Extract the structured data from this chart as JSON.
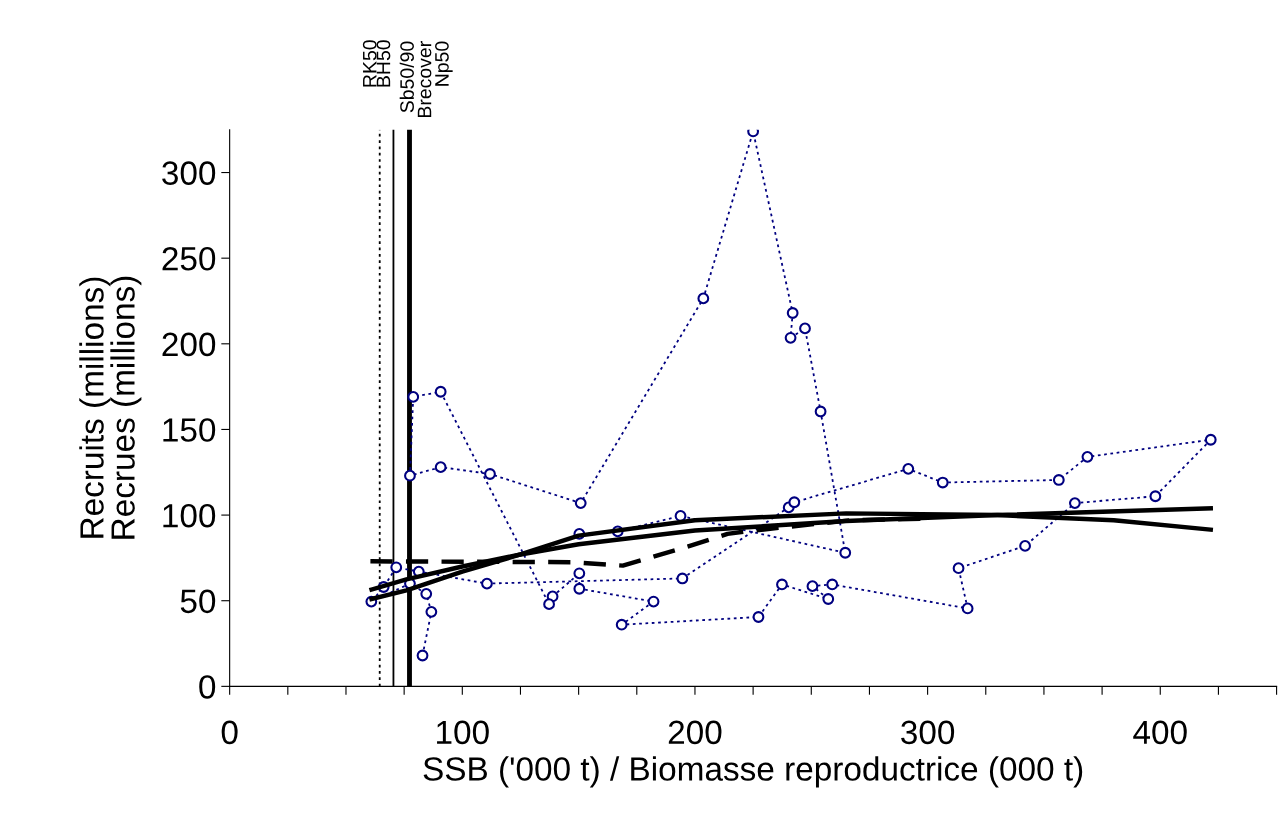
{
  "chart_data": {
    "type": "line",
    "xlabel": "SSB ('000 t) / Biomasse reproductrice (000 t)",
    "ylabel": "Recruits (millions)\nRecrues (millions)",
    "xlim": [
      0,
      450
    ],
    "ylim": [
      0,
      325
    ],
    "xticks": [
      0,
      {
        "value": 25,
        "label": null
      },
      {
        "value": 50,
        "label": null
      },
      {
        "value": 75,
        "label": null
      },
      100,
      {
        "value": 125,
        "label": null
      },
      {
        "value": 150,
        "label": null
      },
      {
        "value": 175,
        "label": null
      },
      200,
      {
        "value": 225,
        "label": null
      },
      {
        "value": 250,
        "label": null
      },
      {
        "value": 275,
        "label": null
      },
      300,
      {
        "value": 325,
        "label": null
      },
      {
        "value": 350,
        "label": null
      },
      {
        "value": 375,
        "label": null
      },
      400,
      {
        "value": 425,
        "label": null
      },
      {
        "value": 450,
        "label": null
      }
    ],
    "yticks": [
      0,
      50,
      100,
      150,
      200,
      250,
      300
    ],
    "grid": false,
    "legend": false,
    "series": [
      {
        "color": "#000080",
        "marker": "circle",
        "line_style": "dotted",
        "x": [
          82.9,
          86.7,
          84.5,
          77.5,
          60.9,
          66.2,
          71.6,
          81.3,
          110.6,
          194.6,
          240.3,
          242.7,
          291.7,
          306.5,
          356.4,
          368.7,
          421.7,
          397.9,
          363.3,
          341.9,
          313.3,
          317.2,
          259,
          250.5,
          257.3,
          237.4,
          227.3,
          168.5,
          182.2,
          150.3,
          150.3,
          138.8,
          137.3,
          90.7,
          78.9,
          77.5,
          90.7,
          111.9,
          150.9,
          203.6,
          225,
          242,
          241.1,
          247.3,
          254,
          264.6,
          193.8,
          166.8,
          150.3
        ],
        "values": [
          18,
          43.5,
          54,
          60,
          49.5,
          58,
          69.5,
          67,
          60,
          63,
          104.5,
          107.5,
          127,
          119,
          120.5,
          134,
          144,
          111,
          107,
          82,
          69,
          45.5,
          59.5,
          58.5,
          51,
          59.5,
          40.5,
          36,
          49.5,
          57,
          66,
          52.5,
          48,
          172,
          169,
          123,
          128,
          124,
          107,
          226.5,
          324,
          218,
          203.5,
          209,
          160.5,
          78,
          99.5,
          90.5,
          89
        ]
      },
      {
        "color": "#000000",
        "marker": "none",
        "line_style": "solid",
        "x": [
          61,
          76,
          100,
          125,
          150,
          200,
          265,
          330,
          421.7
        ],
        "values": [
          56.5,
          62.5,
          70,
          77,
          83,
          91,
          96.5,
          100,
          104
        ]
      },
      {
        "color": "#000000",
        "marker": "none",
        "line_style": "solid",
        "x": [
          61,
          76,
          100,
          125,
          150,
          200,
          265,
          330,
          380,
          421.7
        ],
        "values": [
          51,
          56,
          67,
          77,
          88,
          97,
          101,
          100,
          97,
          91.5
        ]
      },
      {
        "color": "#000000",
        "marker": "none",
        "line_style": "dashed",
        "x": [
          60.5,
          147,
          169,
          193,
          214,
          222,
          267,
          300
        ],
        "values": [
          73,
          72.5,
          70.5,
          80,
          89,
          90.5,
          97,
          98
        ]
      }
    ],
    "ref_lines": [
      {
        "axis": "x",
        "value": 64.5,
        "label": "RK50",
        "color": "#000000",
        "line_style": "dotted"
      },
      {
        "axis": "x",
        "value": 70.4,
        "label": "BH50",
        "color": "#000000",
        "line_style": "solid"
      },
      {
        "axis": "x",
        "value": 77.3,
        "label": "Sb50/90\nBrecover\nNp50",
        "color": "#000000",
        "line_style": "solid"
      }
    ]
  }
}
